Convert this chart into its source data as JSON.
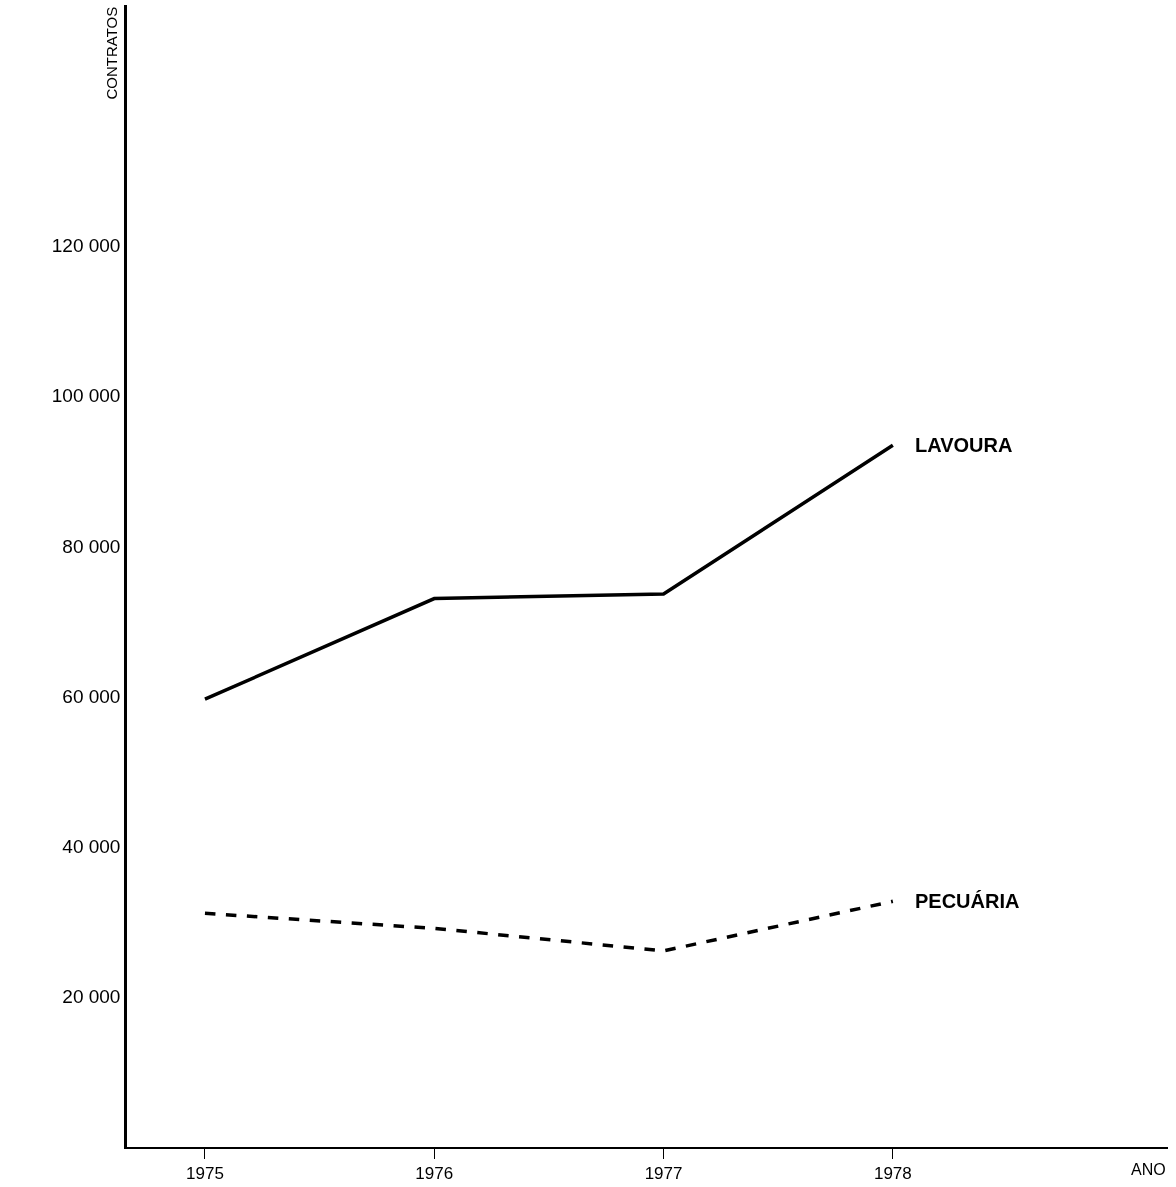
{
  "chart_data": {
    "type": "line",
    "xlabel": "ANO",
    "ylabel": "CONTRATOS",
    "x": [
      1975,
      1976,
      1977,
      1978
    ],
    "series": [
      {
        "name": "LAVOURA",
        "color": "#000000",
        "line_style": "solid",
        "values": [
          59600,
          73000,
          73600,
          93400
        ]
      },
      {
        "name": "PECUÁRIA",
        "color": "#000000",
        "line_style": "dashed",
        "values": [
          31100,
          29100,
          26100,
          32700
        ]
      }
    ],
    "xlim": [
      1974.66,
      1979.2
    ],
    "xticks": [
      1975,
      1976,
      1977,
      1978
    ],
    "ylim": [
      0,
      152000
    ],
    "yticks": [
      {
        "value": 20000,
        "label": "20 000"
      },
      {
        "value": 40000,
        "label": "40 000"
      },
      {
        "value": 60000,
        "label": "60 000"
      },
      {
        "value": 80000,
        "label": "80 000"
      },
      {
        "value": 100000,
        "label": "100 000"
      },
      {
        "value": 120000,
        "label": "120 000"
      }
    ],
    "legend": false,
    "marker": "none"
  }
}
